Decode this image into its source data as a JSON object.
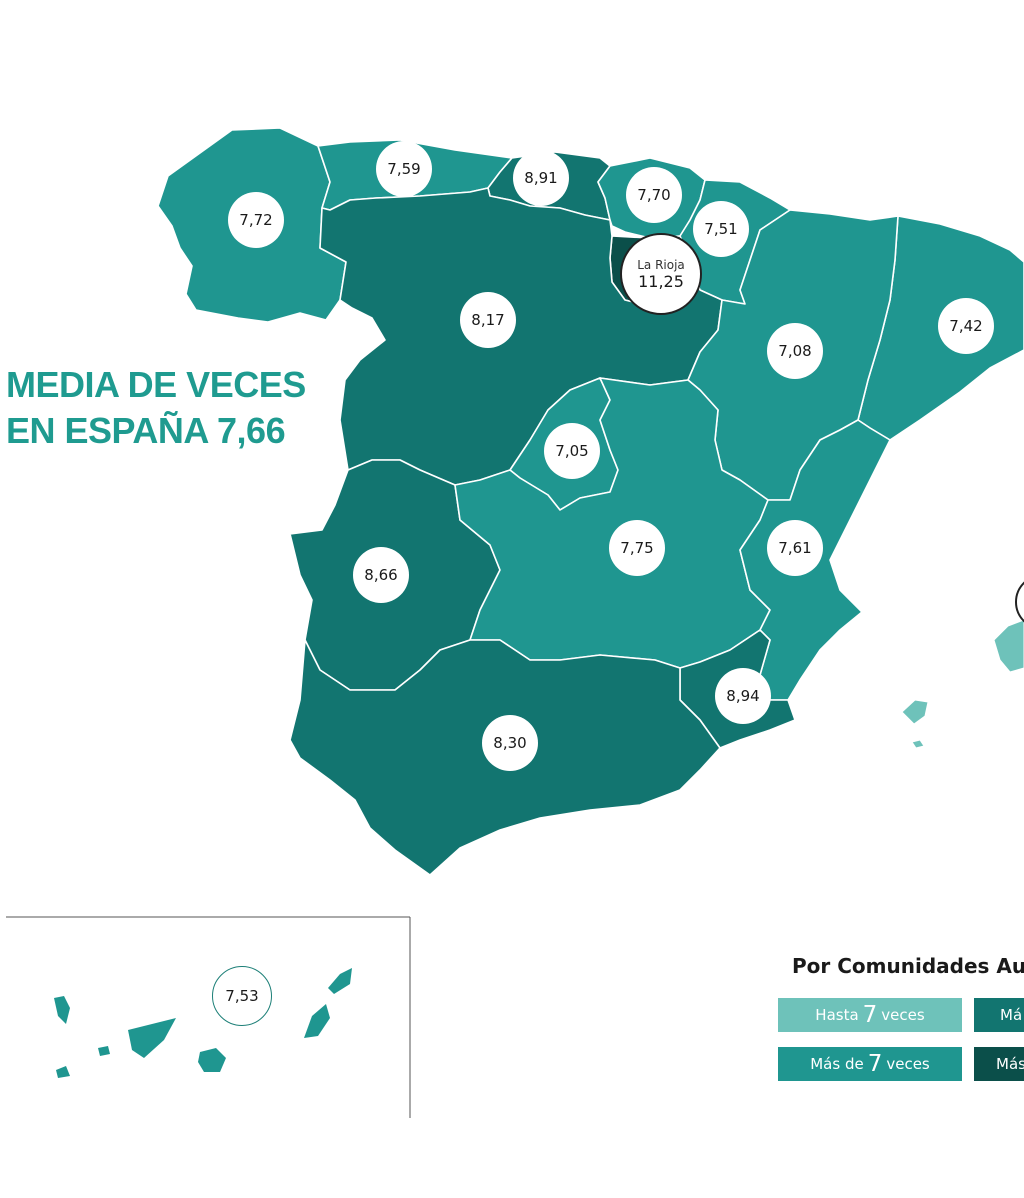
{
  "title": {
    "line1": "MEDIA DE VECES",
    "line2": "EN ESPAÑA 7,66"
  },
  "colors": {
    "hasta7": "#6ec2ba",
    "mas7": "#1f9690",
    "mas8": "#127570",
    "mas10": "#0b4f4a"
  },
  "regions": [
    {
      "name": "Galicia",
      "value": "7,72",
      "category": "mas7"
    },
    {
      "name": "Asturias",
      "value": "7,59",
      "category": "mas7"
    },
    {
      "name": "Cantabria",
      "value": "8,91",
      "category": "mas8"
    },
    {
      "name": "País Vasco",
      "value": "7,70",
      "category": "mas7"
    },
    {
      "name": "Navarra",
      "value": "7,51",
      "category": "mas7"
    },
    {
      "name": "La Rioja",
      "value": "11,25",
      "category": "mas10"
    },
    {
      "name": "Castilla y León",
      "value": "8,17",
      "category": "mas8"
    },
    {
      "name": "Cataluña",
      "value": "7,42",
      "category": "mas7"
    },
    {
      "name": "Aragón",
      "value": "7,08",
      "category": "mas7"
    },
    {
      "name": "Madrid",
      "value": "7,05",
      "category": "mas7"
    },
    {
      "name": "Extremadura",
      "value": "8,66",
      "category": "mas8"
    },
    {
      "name": "Castilla-La Mancha",
      "value": "7,75",
      "category": "mas7"
    },
    {
      "name": "Comunidad Valenciana",
      "value": "7,61",
      "category": "mas7"
    },
    {
      "name": "Región de Murcia",
      "value": "8,94",
      "category": "mas8"
    },
    {
      "name": "Andalucía",
      "value": "8,30",
      "category": "mas8"
    },
    {
      "name": "Canarias",
      "value": "7,53",
      "category": "mas7"
    },
    {
      "name": "Illes Balears",
      "value": "",
      "category": "hasta7"
    }
  ],
  "bubbles": {
    "galicia": "7,72",
    "asturias": "7,59",
    "cantabria": "8,91",
    "pais_vasco": "7,70",
    "navarra": "7,51",
    "la_rioja_label": "La Rioja",
    "la_rioja": "11,25",
    "castilla_leon": "8,17",
    "cataluna": "7,42",
    "aragon": "7,08",
    "madrid": "7,05",
    "extremadura": "8,66",
    "castilla_la_mancha": "7,75",
    "valencia": "7,61",
    "murcia": "8,94",
    "andalucia": "8,30",
    "canarias": "7,53"
  },
  "legend": {
    "title": "Por Comunidades Au",
    "items": [
      {
        "pre": "Hasta",
        "num": "7",
        "post": "veces"
      },
      {
        "pre": "Má",
        "num": "",
        "post": ""
      },
      {
        "pre": "Más de",
        "num": "7",
        "post": "veces"
      },
      {
        "pre": "Más",
        "num": "",
        "post": ""
      }
    ]
  }
}
